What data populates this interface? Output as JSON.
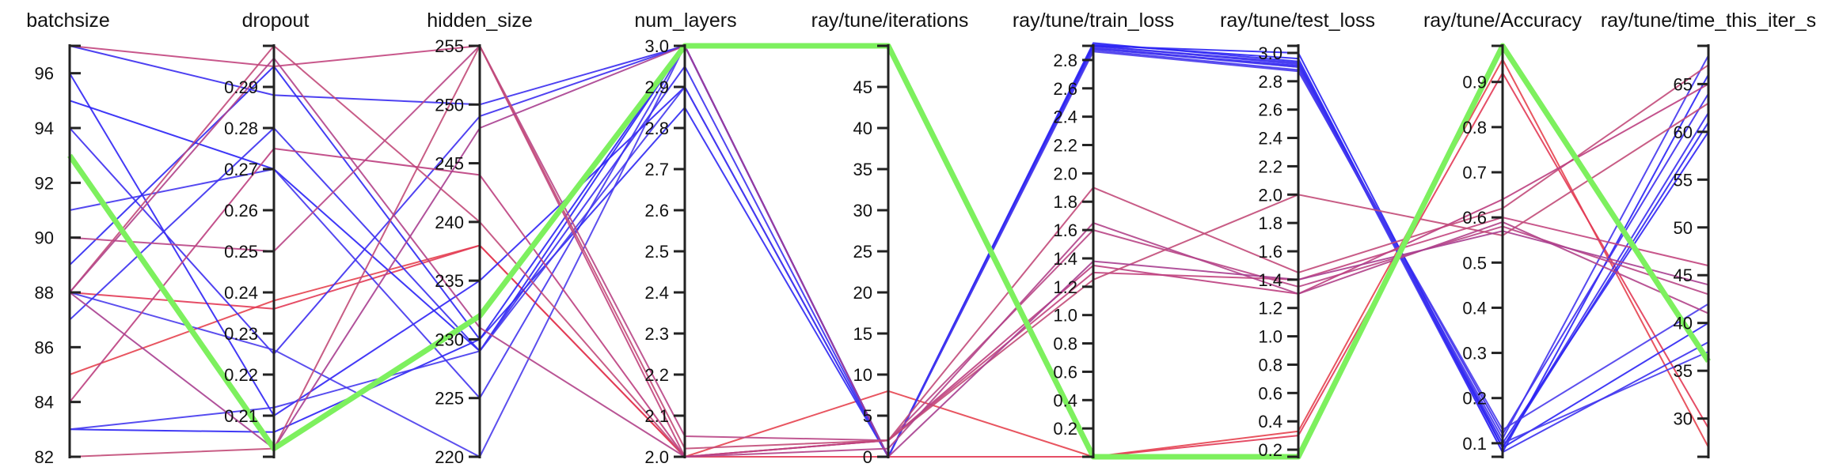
{
  "chart_data": {
    "type": "parallel-coordinates",
    "axes": [
      {
        "key": "batchsize",
        "label": "batchsize",
        "range": [
          82,
          97
        ],
        "ticks": [
          82,
          84,
          86,
          88,
          90,
          92,
          94,
          96
        ],
        "tick_labels": [
          "82",
          "84",
          "86",
          "88",
          "90",
          "92",
          "94",
          "96"
        ],
        "tick_side": "right"
      },
      {
        "key": "dropout",
        "label": "dropout",
        "range": [
          0.2,
          0.3
        ],
        "ticks": [
          0.21,
          0.22,
          0.23,
          0.24,
          0.25,
          0.26,
          0.27,
          0.28,
          0.29
        ],
        "tick_labels": [
          "0.21",
          "0.22",
          "0.23",
          "0.24",
          "0.25",
          "0.26",
          "0.27",
          "0.28",
          "0.29"
        ],
        "tick_side": "left"
      },
      {
        "key": "hidden_size",
        "label": "hidden_size",
        "range": [
          220,
          255
        ],
        "ticks": [
          220,
          225,
          230,
          235,
          240,
          245,
          250,
          255
        ],
        "tick_labels": [
          "220",
          "225",
          "230",
          "235",
          "240",
          "245",
          "250",
          "255"
        ],
        "tick_side": "left"
      },
      {
        "key": "num_layers",
        "label": "num_layers",
        "range": [
          2.0,
          3.0
        ],
        "ticks": [
          2.0,
          2.1,
          2.2,
          2.3,
          2.4,
          2.5,
          2.6,
          2.7,
          2.8,
          2.9,
          3.0
        ],
        "tick_labels": [
          "2.0",
          "2.1",
          "2.2",
          "2.3",
          "2.4",
          "2.5",
          "2.6",
          "2.7",
          "2.8",
          "2.9",
          "3.0"
        ],
        "tick_side": "left"
      },
      {
        "key": "iterations",
        "label": "ray/tune/iterations",
        "range": [
          0,
          50
        ],
        "ticks": [
          0,
          5,
          10,
          15,
          20,
          25,
          30,
          35,
          40,
          45
        ],
        "tick_labels": [
          "0",
          "5",
          "10",
          "15",
          "20",
          "25",
          "30",
          "35",
          "40",
          "45"
        ],
        "tick_side": "left"
      },
      {
        "key": "train_loss",
        "label": "ray/tune/train_loss",
        "range": [
          0.0,
          2.9
        ],
        "ticks": [
          0.2,
          0.4,
          0.6,
          0.8,
          1.0,
          1.2,
          1.4,
          1.6,
          1.8,
          2.0,
          2.2,
          2.4,
          2.6,
          2.8
        ],
        "tick_labels": [
          "0.2",
          "0.4",
          "0.6",
          "0.8",
          "1.0",
          "1.2",
          "1.4",
          "1.6",
          "1.8",
          "2.0",
          "2.2",
          "2.4",
          "2.6",
          "2.8"
        ],
        "tick_side": "left"
      },
      {
        "key": "test_loss",
        "label": "ray/tune/test_loss",
        "range": [
          0.15,
          3.05
        ],
        "ticks": [
          0.2,
          0.4,
          0.6,
          0.8,
          1.0,
          1.2,
          1.4,
          1.6,
          1.8,
          2.0,
          2.2,
          2.4,
          2.6,
          2.8,
          3.0
        ],
        "tick_labels": [
          "0.2",
          "0.4",
          "0.6",
          "0.8",
          "1.0",
          "1.2",
          "1.4",
          "1.6",
          "1.8",
          "2.0",
          "2.2",
          "2.4",
          "2.6",
          "2.8",
          "3.0"
        ],
        "tick_side": "left"
      },
      {
        "key": "accuracy",
        "label": "ray/tune/Accuracy",
        "range": [
          0.07,
          0.98
        ],
        "ticks": [
          0.1,
          0.2,
          0.3,
          0.4,
          0.5,
          0.6,
          0.7,
          0.8,
          0.9
        ],
        "tick_labels": [
          "0.1",
          "0.2",
          "0.3",
          "0.4",
          "0.5",
          "0.6",
          "0.7",
          "0.8",
          "0.9"
        ],
        "tick_side": "left"
      },
      {
        "key": "time_this_iter",
        "label": "ray/tune/time_this_iter_s",
        "range": [
          26,
          69
        ],
        "ticks": [
          30,
          35,
          40,
          45,
          50,
          55,
          60,
          65
        ],
        "tick_labels": [
          "30",
          "35",
          "40",
          "45",
          "50",
          "55",
          "60",
          "65"
        ],
        "tick_side": "left"
      }
    ],
    "color_scale": {
      "low": "#ff3030",
      "high": "#1a1aff",
      "best": "#7df05e",
      "best_width": 7,
      "line_width": 2
    },
    "series": [
      {
        "values": [
          93,
          0.202,
          232,
          3.0,
          50,
          0.0,
          0.15,
          0.98,
          36
        ],
        "color": "#7df05e",
        "best": true
      },
      {
        "values": [
          85,
          0.238,
          238,
          2.0,
          8,
          0.0,
          0.33,
          0.95,
          27
        ],
        "color": "#e5424f"
      },
      {
        "values": [
          88,
          0.236,
          238,
          2.0,
          0,
          0.0,
          0.3,
          0.92,
          29
        ],
        "color": "#e23a55"
      },
      {
        "values": [
          97,
          0.288,
          250,
          3.0,
          0,
          2.9,
          2.93,
          0.09,
          62
        ],
        "color": "#3a2cf0"
      },
      {
        "values": [
          96,
          0.21,
          235,
          2.9,
          0,
          2.88,
          2.91,
          0.1,
          60
        ],
        "color": "#3024f5"
      },
      {
        "values": [
          95,
          0.27,
          229,
          3.0,
          0,
          2.91,
          2.96,
          0.08,
          66
        ],
        "color": "#2a22f6"
      },
      {
        "values": [
          94,
          0.225,
          249,
          3.0,
          0,
          2.89,
          2.9,
          0.12,
          64
        ],
        "color": "#3d2ef0"
      },
      {
        "values": [
          91,
          0.27,
          225,
          3.0,
          0,
          2.87,
          2.88,
          0.11,
          68
        ],
        "color": "#4235ee"
      },
      {
        "values": [
          89,
          0.295,
          230,
          2.85,
          0,
          2.92,
          2.94,
          0.09,
          61
        ],
        "color": "#2f28f3"
      },
      {
        "values": [
          88,
          0.226,
          220,
          3.0,
          0,
          2.86,
          2.87,
          0.13,
          42
        ],
        "color": "#4a3cec"
      },
      {
        "values": [
          87,
          0.28,
          229,
          2.95,
          0,
          2.9,
          2.92,
          0.08,
          38
        ],
        "color": "#3b30ef"
      },
      {
        "values": [
          83,
          0.206,
          230,
          3.0,
          0,
          2.9,
          3.0,
          0.09,
          40
        ],
        "color": "#2b24f4"
      },
      {
        "values": [
          83,
          0.212,
          229,
          2.9,
          0,
          2.88,
          2.9,
          0.1,
          37
        ],
        "color": "#4438ee"
      },
      {
        "values": [
          97,
          0.295,
          255,
          2.0,
          2,
          1.3,
          1.4,
          0.6,
          46
        ],
        "color": "#c2457e"
      },
      {
        "values": [
          90,
          0.25,
          255,
          2.05,
          2,
          1.6,
          1.35,
          0.58,
          43
        ],
        "color": "#b94686"
      },
      {
        "values": [
          88,
          0.3,
          240,
          2.0,
          2,
          1.9,
          1.45,
          0.62,
          67
        ],
        "color": "#c24a7a"
      },
      {
        "values": [
          84,
          0.275,
          244,
          2.0,
          2,
          1.35,
          1.3,
          0.64,
          65
        ],
        "color": "#bd3f7f"
      },
      {
        "values": [
          82,
          0.202,
          255,
          2.02,
          2,
          1.25,
          2.0,
          0.56,
          63
        ],
        "color": "#c24b78"
      },
      {
        "values": [
          88,
          0.297,
          231,
          2.0,
          1,
          1.65,
          1.3,
          0.59,
          41
        ],
        "color": "#b1438a"
      },
      {
        "values": [
          88,
          0.202,
          248,
          3.0,
          0,
          1.38,
          1.4,
          0.57,
          44
        ],
        "color": "#a83f90"
      }
    ]
  }
}
